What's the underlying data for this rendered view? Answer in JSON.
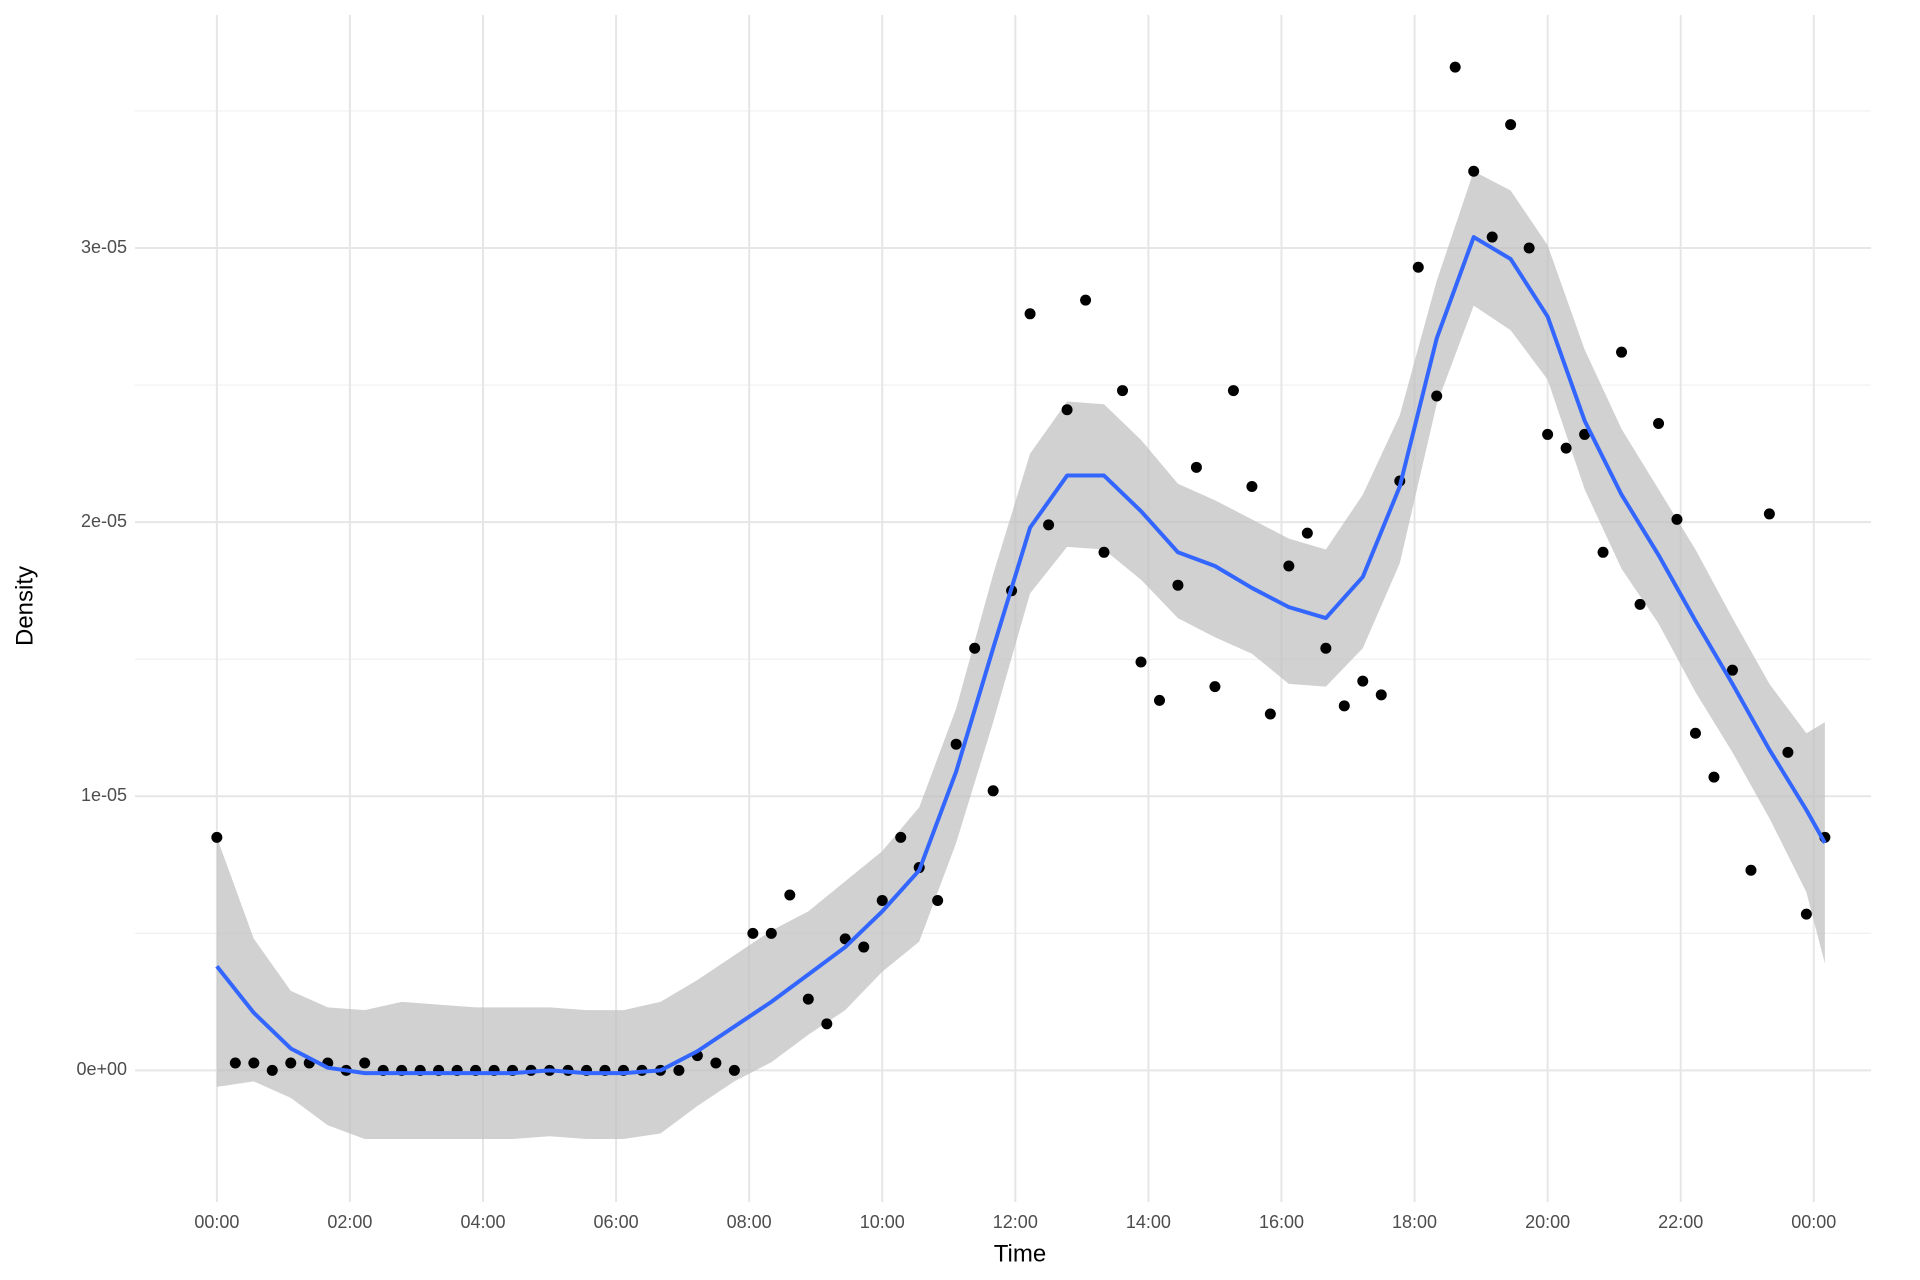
{
  "chart_data": {
    "type": "scatter",
    "x_label": "Time",
    "y_label": "Density",
    "xlim": [
      -1.23,
      24.86
    ],
    "ylim": [
      -4.8e-06,
      3.85e-05
    ],
    "xticks": [
      {
        "value": 0,
        "label": "00:00"
      },
      {
        "value": 2,
        "label": "02:00"
      },
      {
        "value": 4,
        "label": "04:00"
      },
      {
        "value": 6,
        "label": "06:00"
      },
      {
        "value": 8,
        "label": "08:00"
      },
      {
        "value": 10,
        "label": "10:00"
      },
      {
        "value": 12,
        "label": "12:00"
      },
      {
        "value": 14,
        "label": "14:00"
      },
      {
        "value": 16,
        "label": "16:00"
      },
      {
        "value": 18,
        "label": "18:00"
      },
      {
        "value": 20,
        "label": "20:00"
      },
      {
        "value": 22,
        "label": "22:00"
      },
      {
        "value": 24,
        "label": "00:00"
      }
    ],
    "yticks": [
      {
        "value": 0,
        "label": "0e+00"
      },
      {
        "value": 1e-05,
        "label": "1e-05"
      },
      {
        "value": 2e-05,
        "label": "2e-05"
      },
      {
        "value": 3e-05,
        "label": "3e-05"
      }
    ],
    "minor_yticks": [
      5e-06,
      1.5e-05,
      2.5e-05,
      3.5e-05
    ],
    "grid": true,
    "points": {
      "color": "#000000",
      "x": [
        0,
        0.278,
        0.556,
        0.833,
        1.111,
        1.389,
        1.667,
        1.944,
        2.222,
        2.5,
        2.778,
        3.056,
        3.333,
        3.611,
        3.889,
        4.167,
        4.444,
        4.722,
        5,
        5.278,
        5.556,
        5.833,
        6.111,
        6.389,
        6.667,
        6.944,
        7.222,
        7.5,
        7.778,
        8.056,
        8.333,
        8.611,
        8.889,
        9.167,
        9.444,
        9.722,
        10,
        10.278,
        10.556,
        10.833,
        11.111,
        11.389,
        11.667,
        11.944,
        12.222,
        12.5,
        12.778,
        13.056,
        13.333,
        13.611,
        13.889,
        14.167,
        14.444,
        14.722,
        15,
        15.278,
        15.556,
        15.833,
        16.111,
        16.389,
        16.667,
        16.944,
        17.222,
        17.5,
        17.778,
        18.056,
        18.333,
        18.611,
        18.889,
        19.167,
        19.444,
        19.722,
        20,
        20.278,
        20.556,
        20.833,
        21.111,
        21.389,
        21.667,
        21.944,
        22.222,
        22.5,
        22.778,
        23.056,
        23.333,
        23.611,
        23.889,
        24.167
      ],
      "values": [
        8.5e-06,
        2.7e-07,
        2.7e-07,
        0,
        2.7e-07,
        2.7e-07,
        2.7e-07,
        0,
        2.7e-07,
        0,
        0,
        0,
        0,
        0,
        0,
        0,
        0,
        0,
        0,
        0,
        0,
        0,
        0,
        0,
        0,
        0,
        5.4e-07,
        2.7e-07,
        0,
        5e-06,
        5e-06,
        6.4e-06,
        2.6e-06,
        1.7e-06,
        4.8e-06,
        4.5e-06,
        6.2e-06,
        8.5e-06,
        7.4e-06,
        6.2e-06,
        1.19e-05,
        1.54e-05,
        1.02e-05,
        1.75e-05,
        2.76e-05,
        1.99e-05,
        2.41e-05,
        2.81e-05,
        1.89e-05,
        2.48e-05,
        1.49e-05,
        1.35e-05,
        1.77e-05,
        2.2e-05,
        1.4e-05,
        2.48e-05,
        2.13e-05,
        1.3e-05,
        1.84e-05,
        1.96e-05,
        1.54e-05,
        1.33e-05,
        1.42e-05,
        1.37e-05,
        2.15e-05,
        2.93e-05,
        2.46e-05,
        3.66e-05,
        3.28e-05,
        3.04e-05,
        3.45e-05,
        3e-05,
        2.32e-05,
        2.27e-05,
        2.32e-05,
        1.89e-05,
        2.62e-05,
        1.7e-05,
        2.36e-05,
        2.01e-05,
        1.23e-05,
        1.07e-05,
        1.46e-05,
        7.3e-06,
        2.03e-05,
        1.16e-05,
        5.7e-06,
        8.5e-06
      ]
    },
    "smooth": {
      "color": "#3366ff",
      "band_color": "#bdbdbd",
      "x": [
        0,
        0.556,
        1.111,
        1.667,
        2.222,
        2.778,
        3.333,
        3.889,
        4.444,
        5,
        5.556,
        6.111,
        6.667,
        7.222,
        7.778,
        8.333,
        8.889,
        9.444,
        10,
        10.556,
        11.111,
        11.667,
        12.222,
        12.778,
        13.333,
        13.889,
        14.444,
        15,
        15.556,
        16.111,
        16.667,
        17.222,
        17.778,
        18.333,
        18.889,
        19.444,
        20,
        20.556,
        21.111,
        21.667,
        22.222,
        22.778,
        23.333,
        23.889,
        24.167
      ],
      "values": [
        3.8e-06,
        2.1e-06,
        8e-07,
        1e-07,
        -1e-07,
        -1e-07,
        -1e-07,
        -1e-07,
        -1e-07,
        0,
        -1e-07,
        -1e-07,
        0,
        7e-07,
        1.6e-06,
        2.5e-06,
        3.5e-06,
        4.5e-06,
        5.8e-06,
        7.3e-06,
        1.09e-05,
        1.54e-05,
        1.98e-05,
        2.17e-05,
        2.17e-05,
        2.04e-05,
        1.89e-05,
        1.84e-05,
        1.76e-05,
        1.69e-05,
        1.65e-05,
        1.8e-05,
        2.13e-05,
        2.67e-05,
        3.04e-05,
        2.96e-05,
        2.75e-05,
        2.37e-05,
        2.1e-05,
        1.88e-05,
        1.64e-05,
        1.41e-05,
        1.17e-05,
        9.5e-06,
        8.3e-06
      ],
      "lower": [
        -6e-07,
        -4e-07,
        -1e-06,
        -2e-06,
        -2.5e-06,
        -2.5e-06,
        -2.5e-06,
        -2.5e-06,
        -2.5e-06,
        -2.4e-06,
        -2.5e-06,
        -2.5e-06,
        -2.3e-06,
        -1.3e-06,
        -4e-07,
        3e-07,
        1.3e-06,
        2.2e-06,
        3.6e-06,
        4.7e-06,
        8.3e-06,
        1.27e-05,
        1.74e-05,
        1.91e-05,
        1.9e-05,
        1.79e-05,
        1.65e-05,
        1.58e-05,
        1.52e-05,
        1.41e-05,
        1.4e-05,
        1.54e-05,
        1.85e-05,
        2.43e-05,
        2.79e-05,
        2.7e-05,
        2.52e-05,
        2.12e-05,
        1.83e-05,
        1.63e-05,
        1.38e-05,
        1.16e-05,
        9.2e-06,
        6.5e-06,
        3.9e-06
      ],
      "upper": [
        8.5e-06,
        4.8e-06,
        2.9e-06,
        2.3e-06,
        2.2e-06,
        2.5e-06,
        2.4e-06,
        2.3e-06,
        2.3e-06,
        2.3e-06,
        2.2e-06,
        2.2e-06,
        2.5e-06,
        3.3e-06,
        4.2e-06,
        5.1e-06,
        5.8e-06,
        6.9e-06,
        8e-06,
        9.6e-06,
        1.32e-05,
        1.81e-05,
        2.25e-05,
        2.44e-05,
        2.43e-05,
        2.3e-05,
        2.14e-05,
        2.08e-05,
        2.01e-05,
        1.94e-05,
        1.9e-05,
        2.1e-05,
        2.39e-05,
        2.88e-05,
        3.28e-05,
        3.21e-05,
        3.01e-05,
        2.63e-05,
        2.34e-05,
        2.12e-05,
        1.9e-05,
        1.65e-05,
        1.41e-05,
        1.23e-05,
        1.27e-05
      ]
    }
  }
}
